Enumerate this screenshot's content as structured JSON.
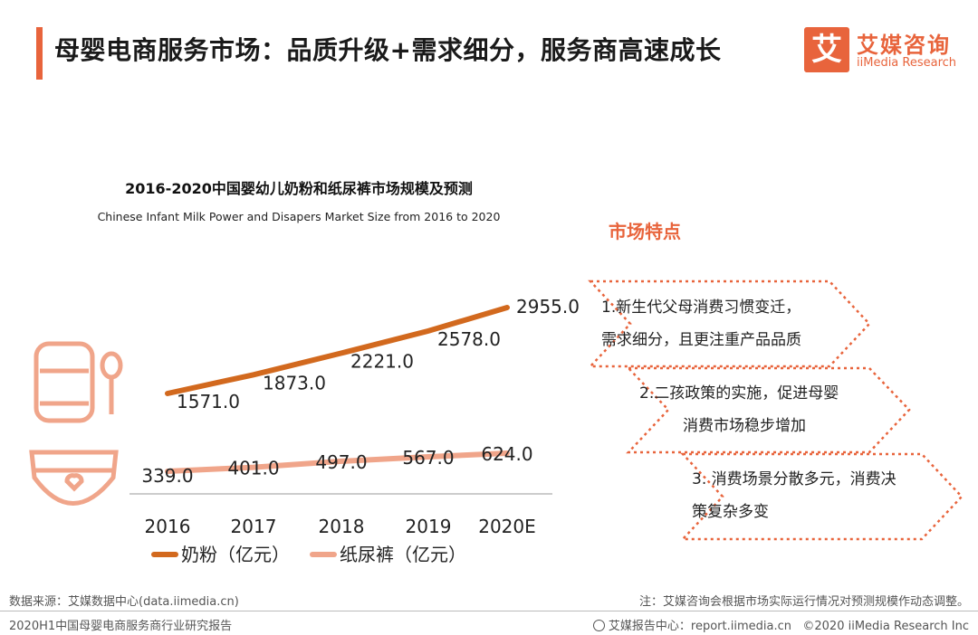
{
  "header": {
    "title": "母婴电商服务市场：品质升级+需求细分，服务商高速成长",
    "logo_mark": "艾",
    "logo_cn": "艾媒咨询",
    "logo_en": "iiMedia Research"
  },
  "chart_data": {
    "type": "line",
    "title": "2016-2020中国婴幼儿奶粉和纸尿裤市场规模及预测",
    "subtitle": "Chinese Infant Milk Power and Disapers Market Size from 2016 to 2020",
    "categories": [
      "2016",
      "2017",
      "2018",
      "2019",
      "2020E"
    ],
    "series": [
      {
        "name": "奶粉（亿元）",
        "color": "#d2691e",
        "values": [
          1571.0,
          1873.0,
          2221.0,
          2578.0,
          2955.0
        ]
      },
      {
        "name": "纸尿裤（亿元）",
        "color": "#f0a58a",
        "values": [
          339.0,
          401.0,
          497.0,
          567.0,
          624.0
        ]
      }
    ],
    "ylim": [
      0,
      3200
    ],
    "legend_position": "bottom-left"
  },
  "features": {
    "title": "市场特点",
    "items": [
      {
        "line1": "1.新生代父母消费习惯变迁，",
        "line2": "需求细分，且更注重产品品质"
      },
      {
        "line1": "2.二孩政策的实施，促进母婴",
        "line2": "消费市场稳步增加"
      },
      {
        "line1": "3. 消费场景分散多元，消费决",
        "line2": "策复杂多变"
      }
    ]
  },
  "colors": {
    "accent": "#e8643c"
  },
  "footer": {
    "source": "数据来源：艾媒数据中心(data.iimedia.cn)",
    "note": "注：艾媒咨询会根据市场实际运行情况对预测规模作动态调整。",
    "report": "2020H1中国母婴电商服务商行业研究报告",
    "center_label": "艾媒报告中心：report.iimedia.cn",
    "copyright": "©2020 iiMedia Research Inc"
  }
}
